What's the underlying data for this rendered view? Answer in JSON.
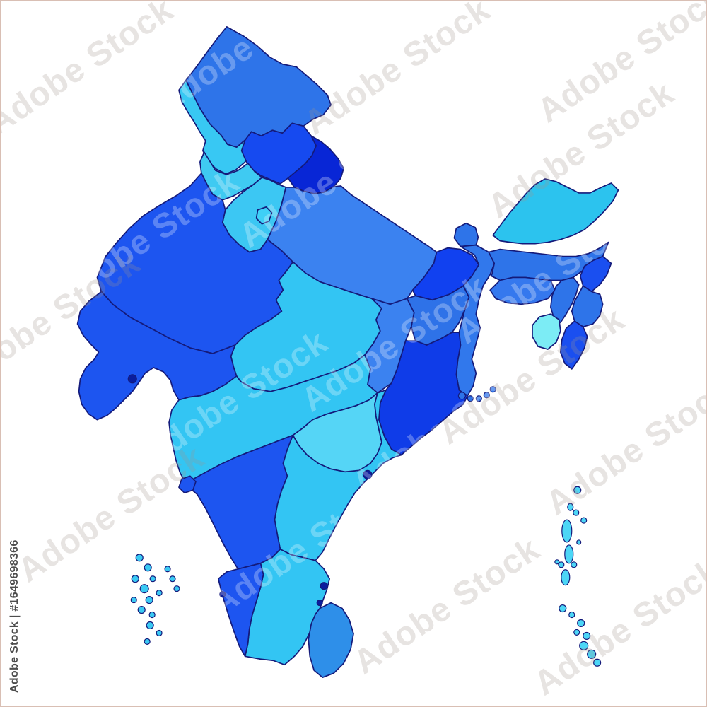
{
  "canvas": {
    "background": "#ffffff",
    "border_color": "#d9bfb4"
  },
  "watermark": {
    "tile_text": "Adobe Stock",
    "attribution": "Adobe Stock | #1649698366"
  },
  "map": {
    "stroke": "#141a7a",
    "regions": [
      {
        "id": "ladakh",
        "color": "#2e74e9"
      },
      {
        "id": "jammu-kashmir",
        "color": "#38c8f3"
      },
      {
        "id": "himachal-pradesh",
        "color": "#164af0"
      },
      {
        "id": "punjab",
        "color": "#3fcaf2"
      },
      {
        "id": "uttarakhand",
        "color": "#0826d6"
      },
      {
        "id": "haryana",
        "color": "#3cc7f3"
      },
      {
        "id": "delhi",
        "color": "#3fd0f7"
      },
      {
        "id": "uttar-pradesh",
        "color": "#3b82f0"
      },
      {
        "id": "rajasthan",
        "color": "#1d55f0"
      },
      {
        "id": "gujarat",
        "color": "#1d55f0"
      },
      {
        "id": "madhya-pradesh",
        "color": "#33c5f3"
      },
      {
        "id": "bihar",
        "color": "#1141f0"
      },
      {
        "id": "sikkim",
        "color": "#2e74e9"
      },
      {
        "id": "west-bengal",
        "color": "#3178ec"
      },
      {
        "id": "jharkhand",
        "color": "#2e72e8"
      },
      {
        "id": "chhattisgarh",
        "color": "#3b82f0"
      },
      {
        "id": "odisha",
        "color": "#0f3ce8"
      },
      {
        "id": "maharashtra",
        "color": "#33c5f3"
      },
      {
        "id": "andhra-pradesh",
        "color": "#33c5f3"
      },
      {
        "id": "telangana",
        "color": "#55d5f6"
      },
      {
        "id": "karnataka",
        "color": "#1d55f0"
      },
      {
        "id": "goa",
        "color": "#1d55f0"
      },
      {
        "id": "kerala",
        "color": "#1d55f0"
      },
      {
        "id": "tamil-nadu",
        "color": "#33c5f3"
      },
      {
        "id": "sri-lanka",
        "color": "#2e8fe9"
      },
      {
        "id": "arunachal-pradesh",
        "color": "#2cc3ee"
      },
      {
        "id": "assam",
        "color": "#2e74e9"
      },
      {
        "id": "assam-south",
        "color": "#2e74e9"
      },
      {
        "id": "meghalaya",
        "color": "#3578ee"
      },
      {
        "id": "nagaland",
        "color": "#1a4ff0"
      },
      {
        "id": "manipur",
        "color": "#2e74e9"
      },
      {
        "id": "mizoram",
        "color": "#1a4ff0"
      },
      {
        "id": "tripura",
        "color": "#7cecf5"
      },
      {
        "id": "sundarbans",
        "color": "#2e74e9"
      },
      {
        "id": "lakshadweep",
        "color": "#3ac9f3"
      },
      {
        "id": "andaman-nicobar",
        "color": "#4cd6f6"
      },
      {
        "id": "enclaves",
        "color": "#0a1d9e"
      }
    ]
  }
}
